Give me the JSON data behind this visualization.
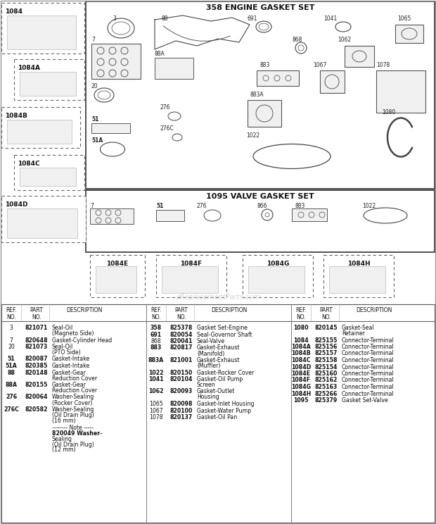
{
  "bg_color": "#ffffff",
  "engine_title": "358 ENGINE GASKET SET",
  "valve_title": "1095 VALVE GASKET SET",
  "watermark": "eReplacementParts.com",
  "col1_data": [
    [
      "3",
      "821071",
      "Seal-Oil\n(Magneto Side)"
    ],
    [
      "7",
      "820648",
      "Gasket-Cylinder Head"
    ],
    [
      "20",
      "821073",
      "Seal-Oil\n(PTO Side)"
    ],
    [
      "51",
      "820087",
      "Gasket-Intake"
    ],
    [
      "51A",
      "820385",
      "Gasket-Intake"
    ],
    [
      "88",
      "820148",
      "Gasket-Gear\nReduction Cover"
    ],
    [
      "88A",
      "820155",
      "Gasket-Gear\nReduction Cover"
    ],
    [
      "276",
      "820064",
      "Washer-Sealing\n(Rocker Cover)"
    ],
    [
      "276C",
      "820582",
      "Washer-Sealing\n(Oil Drain Plug)\n(16 mm)"
    ],
    [
      "",
      "",
      "-------- Note -----\n820049 Washer-\nSealing\n(Oil Drain Plug)\n(12 mm)"
    ]
  ],
  "col2_data": [
    [
      "358",
      "825378",
      "Gasket Set-Engine"
    ],
    [
      "691",
      "820054",
      "Seal-Governor Shaft"
    ],
    [
      "868",
      "820041",
      "Seal-Valve"
    ],
    [
      "883",
      "820817",
      "Gasket-Exhaust\n(Manifold)"
    ],
    [
      "883A",
      "821001",
      "Gasket-Exhaust\n(Muffler)"
    ],
    [
      "1022",
      "820150",
      "Gasket-Rocker Cover"
    ],
    [
      "1041",
      "820104",
      "Gasket-Oil Pump\nScreen"
    ],
    [
      "1062",
      "820093",
      "Gasket-Outlet\nHousing"
    ],
    [
      "1065",
      "820098",
      "Gasket-Inlet Housing"
    ],
    [
      "1067",
      "820100",
      "Gasket-Water Pump"
    ],
    [
      "1078",
      "820137",
      "Gasket-Oil Pan"
    ]
  ],
  "col3_data": [
    [
      "1080",
      "820145",
      "Gasket-Seal\nRetainer"
    ],
    [
      "1084",
      "825155",
      "Connector-Terminal"
    ],
    [
      "1084A",
      "825156",
      "Connector-Terminal"
    ],
    [
      "1084B",
      "825157",
      "Connector-Terminal"
    ],
    [
      "1084C",
      "825158",
      "Connector-Terminal"
    ],
    [
      "1084D",
      "825154",
      "Connector-Terminal"
    ],
    [
      "1084E",
      "825160",
      "Connector-Terminal"
    ],
    [
      "1084F",
      "825162",
      "Connector-Terminal"
    ],
    [
      "1084G",
      "825163",
      "Connector-Terminal"
    ],
    [
      "1084H",
      "825266",
      "Connector-Terminal"
    ],
    [
      "1095",
      "825379",
      "Gasket Set-Valve"
    ]
  ]
}
